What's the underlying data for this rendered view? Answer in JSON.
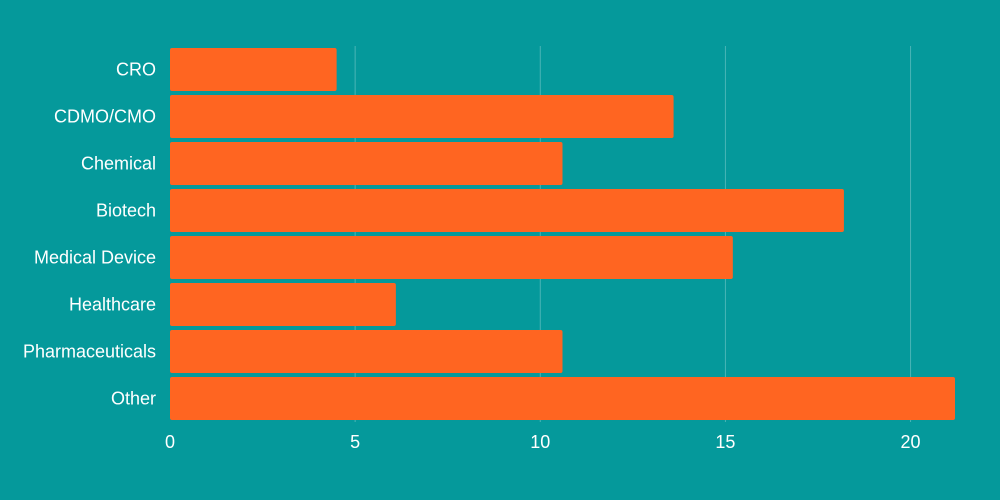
{
  "chart_data": {
    "type": "bar",
    "orientation": "horizontal",
    "categories": [
      "CRO",
      "CDMO/CMO",
      "Chemical",
      "Biotech",
      "Medical Device",
      "Healthcare",
      "Pharmaceuticals",
      "Other"
    ],
    "values": [
      4.5,
      13.6,
      10.6,
      18.2,
      15.2,
      6.1,
      10.6,
      21.2
    ],
    "xticks": [
      0,
      5,
      10,
      15,
      20
    ],
    "xlim": [
      0,
      21.2
    ],
    "grid": true,
    "legend": "none",
    "title": "",
    "xlabel": "",
    "ylabel": ""
  },
  "colors": {
    "background": "#05999b",
    "bar": "#ff6521",
    "text": "#ffffff"
  }
}
